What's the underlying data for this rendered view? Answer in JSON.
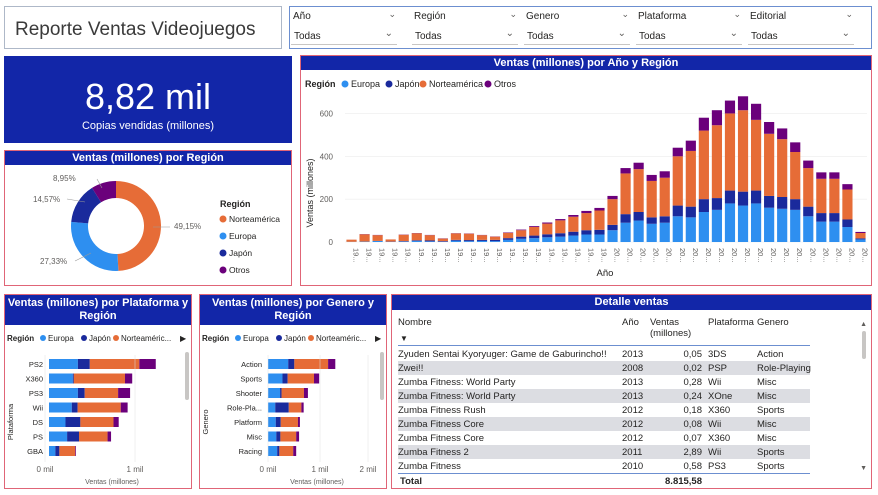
{
  "report": {
    "title": "Reporte Ventas Videojuegos"
  },
  "filters": [
    {
      "label": "Año",
      "value": "Todas"
    },
    {
      "label": "Región",
      "value": "Todas"
    },
    {
      "label": "Genero",
      "value": "Todas"
    },
    {
      "label": "Plataforma",
      "value": "Todas"
    },
    {
      "label": "Editorial",
      "value": "Todas"
    }
  ],
  "kpi": {
    "value": "8,82 mil",
    "caption": "Copias vendidas (millones)"
  },
  "colors": {
    "header": "#1226a8",
    "europa": "#2e8ff0",
    "japon": "#1a2a9c",
    "norteamerica": "#e66c37",
    "otros": "#6b007b"
  },
  "region_legend": {
    "title": "Región",
    "items": [
      "Europa",
      "Japón",
      "Norteamérica",
      "Otros"
    ]
  },
  "donut": {
    "title": "Ventas (millones) por Región",
    "legend_title": "Región",
    "legend": [
      "Norteamérica",
      "Europa",
      "Japón",
      "Otros"
    ],
    "slice_labels": [
      "49,15%",
      "27,33%",
      "14,57%",
      "8,95%"
    ],
    "chart_data": {
      "type": "pie",
      "categories": [
        "Norteamérica",
        "Europa",
        "Japón",
        "Otros"
      ],
      "values": [
        49.15,
        27.33,
        14.57,
        8.95
      ]
    }
  },
  "year_chart": {
    "title": "Ventas (millones) por Año y Región",
    "ylabel": "Ventas (millones)",
    "xlabel": "Año",
    "y_ticks": [
      "0",
      "200",
      "400",
      "600"
    ],
    "x_tick": "19...",
    "x_tick_2000": "20...",
    "chart_data": {
      "type": "bar",
      "stacked": true,
      "x": [
        1980,
        1981,
        1982,
        1983,
        1984,
        1985,
        1986,
        1987,
        1988,
        1989,
        1990,
        1991,
        1992,
        1993,
        1994,
        1995,
        1996,
        1997,
        1998,
        1999,
        2000,
        2001,
        2002,
        2003,
        2004,
        2005,
        2006,
        2007,
        2008,
        2009,
        2010,
        2011,
        2012,
        2013,
        2014,
        2015,
        2016,
        2017,
        2018,
        2019
      ],
      "ylim": [
        0,
        700
      ],
      "series": [
        {
          "name": "Europa",
          "values": [
            1,
            2,
            5,
            1,
            2,
            5,
            3,
            1,
            6,
            4,
            5,
            4,
            10,
            15,
            18,
            22,
            25,
            30,
            35,
            35,
            55,
            90,
            100,
            85,
            90,
            120,
            115,
            140,
            150,
            180,
            170,
            180,
            160,
            155,
            150,
            120,
            95,
            95,
            70,
            12
          ]
        },
        {
          "name": "Japón",
          "values": [
            0,
            0,
            0,
            1,
            2,
            3,
            4,
            3,
            4,
            5,
            5,
            6,
            8,
            10,
            12,
            14,
            16,
            18,
            20,
            22,
            25,
            40,
            40,
            30,
            30,
            50,
            50,
            60,
            55,
            60,
            65,
            60,
            55,
            55,
            50,
            45,
            40,
            40,
            35,
            5
          ]
        },
        {
          "name": "Norteamérica",
          "values": [
            10,
            34,
            27,
            10,
            30,
            33,
            25,
            12,
            30,
            30,
            22,
            15,
            25,
            30,
            40,
            50,
            60,
            70,
            80,
            90,
            120,
            190,
            200,
            170,
            180,
            230,
            260,
            320,
            340,
            360,
            380,
            330,
            290,
            270,
            220,
            180,
            160,
            160,
            140,
            25
          ]
        },
        {
          "name": "Otros",
          "values": [
            0,
            1,
            1,
            0,
            1,
            1,
            1,
            1,
            1,
            1,
            1,
            1,
            2,
            3,
            4,
            5,
            6,
            8,
            10,
            12,
            15,
            25,
            30,
            28,
            30,
            40,
            48,
            60,
            70,
            60,
            65,
            75,
            55,
            50,
            45,
            35,
            30,
            30,
            25,
            5
          ]
        }
      ]
    }
  },
  "platform_chart": {
    "title": "Ventas (millones) por Plataforma y Región",
    "legend_title": "Región",
    "legend": [
      "Europa",
      "Japón",
      "Norteaméric..."
    ],
    "ylabel": "Plataforma",
    "xlabel": "Ventas (millones)",
    "x_ticks": [
      "0 mil",
      "1 mil"
    ],
    "chart_data": {
      "type": "bar",
      "orientation": "horizontal",
      "stacked": true,
      "categories": [
        "PS2",
        "X360",
        "PS3",
        "Wii",
        "DS",
        "PS",
        "GBA"
      ],
      "series": [
        {
          "name": "Europa",
          "values": [
            340,
            280,
            340,
            268,
            194,
            213,
            75
          ]
        },
        {
          "name": "Japón",
          "values": [
            140,
            12,
            80,
            69,
            175,
            140,
            47
          ]
        },
        {
          "name": "Norteamérica",
          "values": [
            583,
            602,
            393,
            507,
            390,
            336,
            187
          ]
        },
        {
          "name": "Otros",
          "values": [
            193,
            85,
            141,
            81,
            61,
            41,
            8
          ]
        }
      ]
    }
  },
  "genre_chart": {
    "title": "Ventas (millones) por Genero y Región",
    "legend_title": "Región",
    "legend": [
      "Europa",
      "Japón",
      "Norteaméric..."
    ],
    "ylabel": "Genero",
    "xlabel": "Ventas (millones)",
    "x_ticks": [
      "0 mil",
      "1 mil",
      "2 mil"
    ],
    "chart_data": {
      "type": "bar",
      "orientation": "horizontal",
      "stacked": true,
      "categories": [
        "Action",
        "Sports",
        "Shooter",
        "Role-Pla...",
        "Platform",
        "Misc",
        "Racing"
      ],
      "series": [
        {
          "name": "Europa",
          "values": [
            525,
            376,
            314,
            188,
            201,
            215,
            238
          ]
        },
        {
          "name": "Japón",
          "values": [
            159,
            135,
            38,
            352,
            130,
            107,
            57
          ]
        },
        {
          "name": "Norteamérica",
          "values": [
            877,
            684,
            582,
            327,
            447,
            410,
            360
          ]
        },
        {
          "name": "Otros",
          "values": [
            187,
            134,
            103,
            59,
            51,
            75,
            77
          ]
        }
      ]
    }
  },
  "detail_table": {
    "title": "Detalle ventas",
    "columns": [
      "Nombre",
      "Año",
      "Ventas (millones)",
      "Plataforma",
      "Genero"
    ],
    "rows": [
      [
        "Zyuden Sentai Kyoryuger: Game de Gaburincho!!",
        "2013",
        "0,05",
        "3DS",
        "Action"
      ],
      [
        "Zwei!!",
        "2008",
        "0,02",
        "PSP",
        "Role-Playing"
      ],
      [
        "Zumba Fitness: World Party",
        "2013",
        "0,28",
        "Wii",
        "Misc"
      ],
      [
        "Zumba Fitness: World Party",
        "2013",
        "0,24",
        "XOne",
        "Misc"
      ],
      [
        "Zumba Fitness Rush",
        "2012",
        "0,18",
        "X360",
        "Sports"
      ],
      [
        "Zumba Fitness Core",
        "2012",
        "0,08",
        "Wii",
        "Misc"
      ],
      [
        "Zumba Fitness Core",
        "2012",
        "0,07",
        "X360",
        "Misc"
      ],
      [
        "Zumba Fitness 2",
        "2011",
        "2,89",
        "Wii",
        "Sports"
      ],
      [
        "Zumba Fitness",
        "2010",
        "0,58",
        "PS3",
        "Sports"
      ]
    ],
    "total_label": "Total",
    "total_value": "8.815,58"
  }
}
